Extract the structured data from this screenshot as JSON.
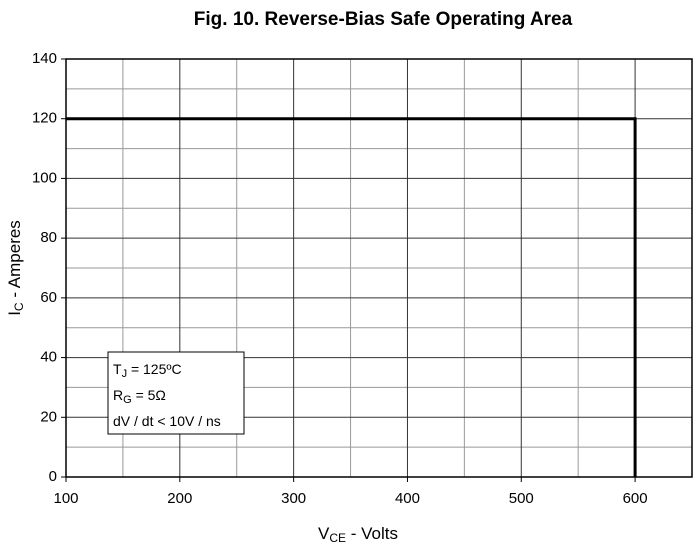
{
  "chart_data": {
    "type": "line",
    "title": "Fig. 10. Reverse-Bias Safe Operating Area",
    "x_label": {
      "main": "V",
      "sub": "CE",
      "rest": " - Volts"
    },
    "y_label": {
      "main": "I",
      "sub": "C",
      "rest": " - Amperes"
    },
    "annotation": [
      {
        "main": "T",
        "sub": "J",
        "rest": " = 125ºC"
      },
      {
        "main": "R",
        "sub": "G",
        "rest": " = 5Ω"
      },
      {
        "main": "dV / dt < 10V / ns"
      }
    ],
    "series": [
      {
        "color": "#000000",
        "x": [
          100,
          600,
          600
        ],
        "values": [
          120,
          120,
          0
        ]
      }
    ],
    "xlim": [
      100,
      650
    ],
    "ylim": [
      0,
      140
    ],
    "xticks": [
      100,
      200,
      300,
      400,
      500,
      600
    ],
    "yticks": [
      0,
      20,
      40,
      60,
      80,
      100,
      120,
      140
    ],
    "xminor": [
      150,
      250,
      350,
      450,
      550
    ],
    "yminor": [
      10,
      30,
      50,
      70,
      90,
      110,
      130
    ],
    "grid": true
  }
}
